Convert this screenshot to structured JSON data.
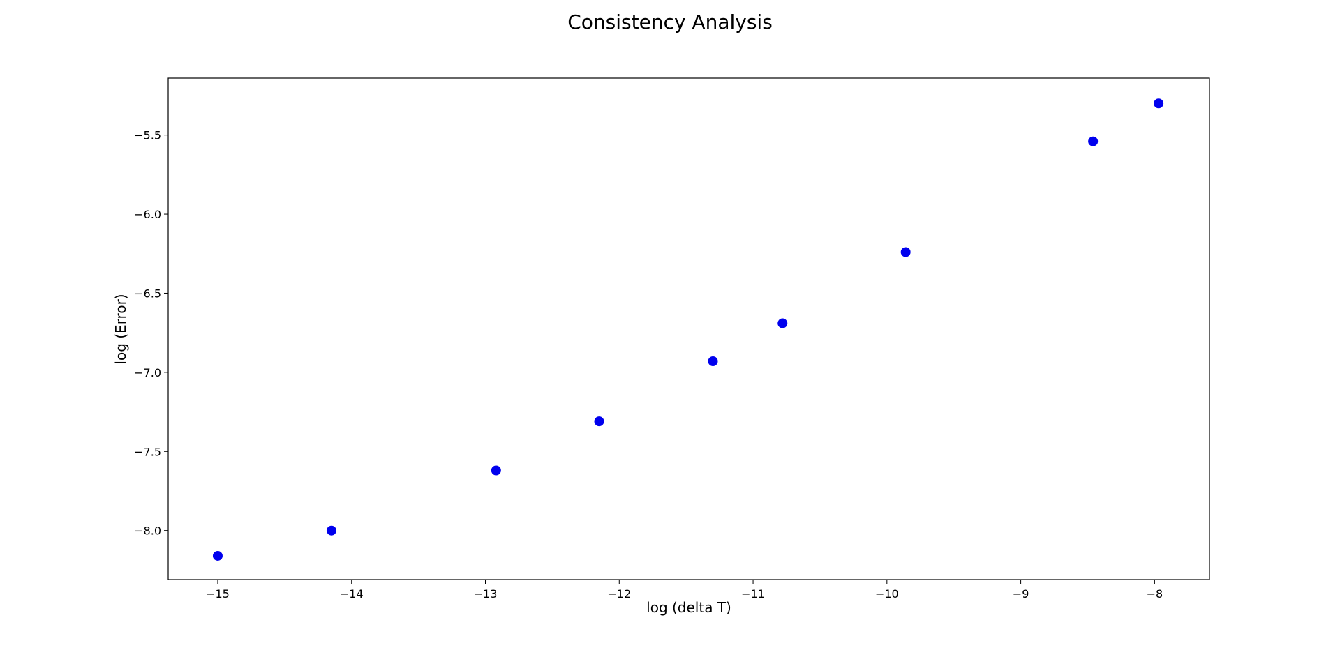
{
  "chart_data": {
    "type": "scatter",
    "title": "Consistency Analysis",
    "xlabel": "log (delta T)",
    "ylabel": "log (Error)",
    "xlim": [
      -15.37,
      -7.59
    ],
    "ylim": [
      -8.31,
      -5.14
    ],
    "xticks": [
      -15,
      -14,
      -13,
      -12,
      -11,
      -10,
      -9,
      -8
    ],
    "xtick_labels": [
      "−15",
      "−14",
      "−13",
      "−12",
      "−11",
      "−10",
      "−9",
      "−8"
    ],
    "yticks": [
      -8.0,
      -7.5,
      -7.0,
      -6.5,
      -6.0,
      -5.5
    ],
    "ytick_labels": [
      "−8.0",
      "−7.5",
      "−7.0",
      "−6.5",
      "−6.0",
      "−5.5"
    ],
    "grid": false,
    "marker_color": "#0000ee",
    "points": [
      {
        "x": -15.0,
        "y": -8.16
      },
      {
        "x": -14.15,
        "y": -8.0
      },
      {
        "x": -12.92,
        "y": -7.62
      },
      {
        "x": -12.15,
        "y": -7.31
      },
      {
        "x": -11.3,
        "y": -6.93
      },
      {
        "x": -10.78,
        "y": -6.69
      },
      {
        "x": -9.86,
        "y": -6.24
      },
      {
        "x": -8.46,
        "y": -5.54
      },
      {
        "x": -7.97,
        "y": -5.3
      }
    ]
  }
}
